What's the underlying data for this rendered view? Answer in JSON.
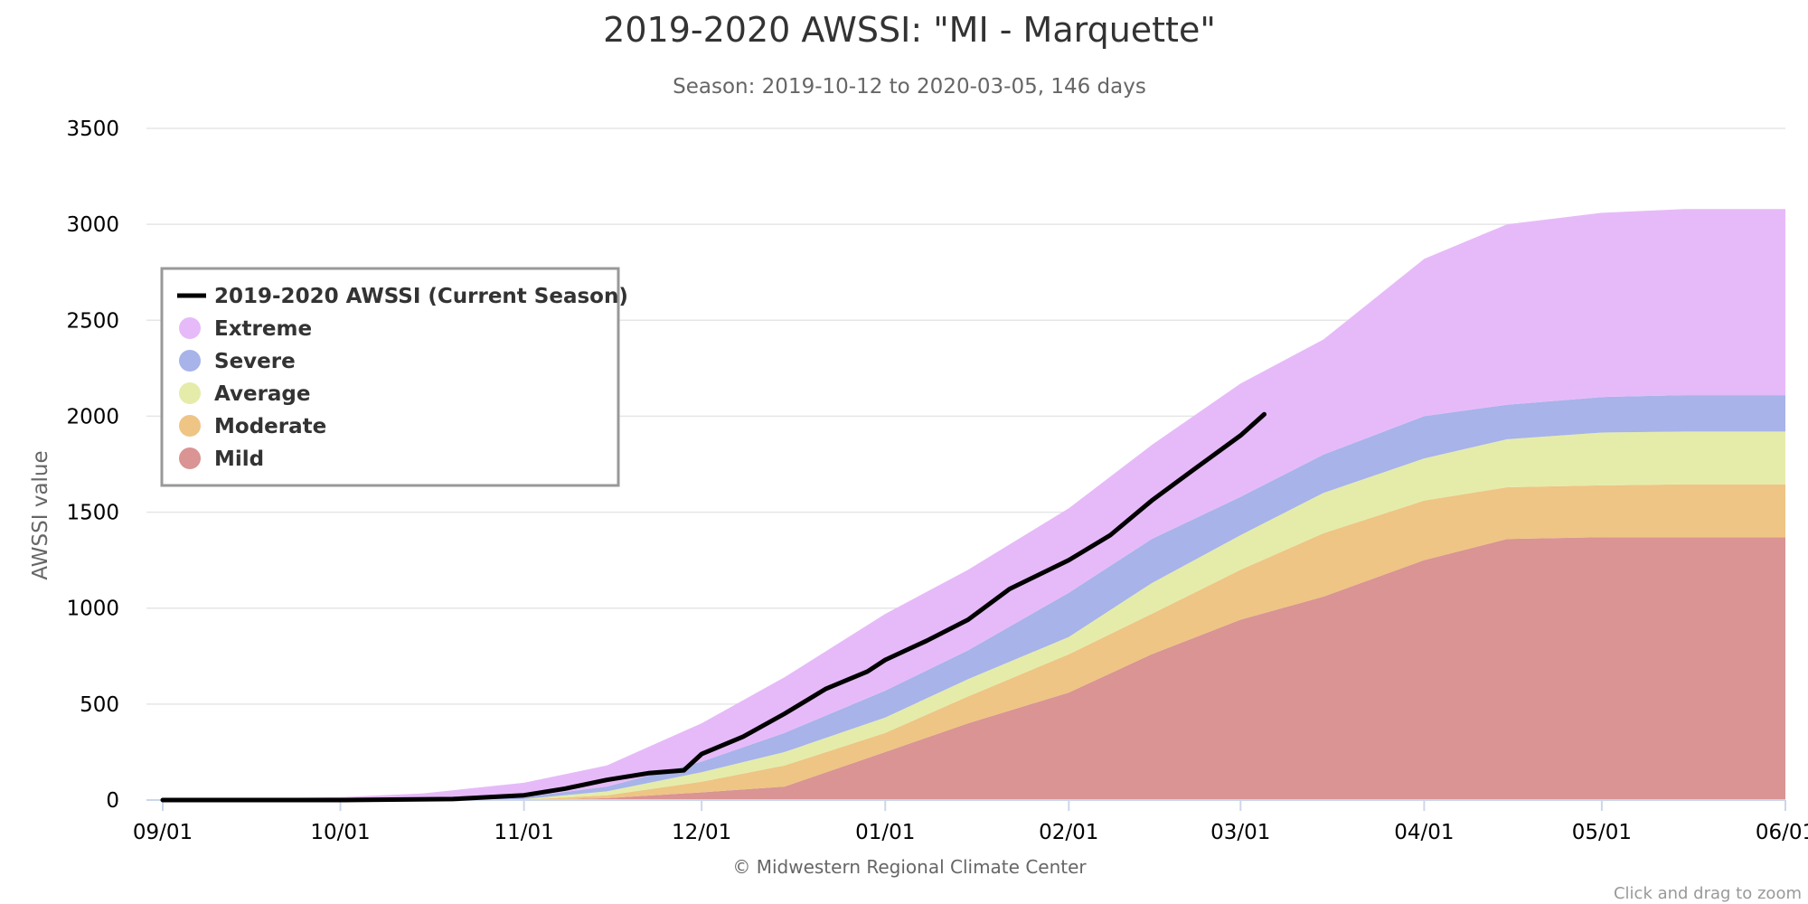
{
  "chart_data": {
    "type": "area",
    "title": "2019-2020 AWSSI: \"MI - Marquette\"",
    "subtitle": "Season: 2019-10-12 to 2020-03-05, 146 days",
    "ylabel": "AWSSI value",
    "xlabel": "",
    "ylim": [
      0,
      3500
    ],
    "y_ticks": [
      0,
      500,
      1000,
      1500,
      2000,
      2500,
      3000,
      3500
    ],
    "x_range": [
      "2019-09-01",
      "2020-06-01"
    ],
    "x_ticks": [
      {
        "date": "2019-09-01",
        "label": "09/01"
      },
      {
        "date": "2019-10-01",
        "label": "10/01"
      },
      {
        "date": "2019-11-01",
        "label": "11/01"
      },
      {
        "date": "2019-12-01",
        "label": "12/01"
      },
      {
        "date": "2020-01-01",
        "label": "01/01"
      },
      {
        "date": "2020-02-01",
        "label": "02/01"
      },
      {
        "date": "2020-03-01",
        "label": "03/01"
      },
      {
        "date": "2020-04-01",
        "label": "04/01"
      },
      {
        "date": "2020-05-01",
        "label": "05/01"
      },
      {
        "date": "2020-06-01",
        "label": "06/01"
      }
    ],
    "grid": true,
    "legend_position": "top-left",
    "credit": "© Midwestern Regional Climate Center",
    "zoom_hint": "Click and drag to zoom",
    "x": [
      "2019-09-01",
      "2019-10-01",
      "2019-10-15",
      "2019-11-01",
      "2019-11-15",
      "2019-12-01",
      "2019-12-15",
      "2020-01-01",
      "2020-01-15",
      "2020-02-01",
      "2020-02-15",
      "2020-03-01",
      "2020-03-15",
      "2020-04-01",
      "2020-04-15",
      "2020-05-01",
      "2020-05-15",
      "2020-06-01"
    ],
    "bands": [
      {
        "name": "Mild",
        "color": "#d99493",
        "lower": [
          0,
          0,
          0,
          0,
          0,
          0,
          0,
          0,
          0,
          0,
          0,
          0,
          0,
          0,
          0,
          0,
          0,
          0
        ],
        "upper": [
          0,
          0,
          0,
          0,
          10,
          40,
          70,
          250,
          400,
          560,
          760,
          940,
          1060,
          1250,
          1360,
          1370,
          1370,
          1370
        ]
      },
      {
        "name": "Moderate",
        "color": "#eec584",
        "lower": [
          0,
          0,
          0,
          0,
          10,
          40,
          70,
          250,
          400,
          560,
          760,
          940,
          1060,
          1250,
          1360,
          1370,
          1370,
          1370
        ],
        "upper": [
          0,
          0,
          0,
          2,
          25,
          95,
          180,
          350,
          540,
          760,
          970,
          1200,
          1390,
          1560,
          1630,
          1640,
          1645,
          1645
        ]
      },
      {
        "name": "Average",
        "color": "#e5ecaa",
        "lower": [
          0,
          0,
          0,
          2,
          25,
          95,
          180,
          350,
          540,
          760,
          970,
          1200,
          1390,
          1560,
          1630,
          1640,
          1645,
          1645
        ],
        "upper": [
          0,
          0,
          0,
          5,
          45,
          145,
          250,
          430,
          630,
          850,
          1130,
          1380,
          1600,
          1780,
          1880,
          1915,
          1920,
          1920
        ]
      },
      {
        "name": "Severe",
        "color": "#a7b3e9",
        "lower": [
          0,
          0,
          0,
          5,
          45,
          145,
          250,
          430,
          630,
          850,
          1130,
          1380,
          1600,
          1780,
          1880,
          1915,
          1920,
          1920
        ],
        "upper": [
          0,
          0,
          5,
          15,
          70,
          200,
          350,
          570,
          780,
          1080,
          1360,
          1580,
          1800,
          2000,
          2060,
          2100,
          2110,
          2110
        ]
      },
      {
        "name": "Extreme",
        "color": "#e6baf8",
        "lower": [
          0,
          0,
          5,
          15,
          70,
          200,
          350,
          570,
          780,
          1080,
          1360,
          1580,
          1800,
          2000,
          2060,
          2100,
          2110,
          2110
        ],
        "upper": [
          0,
          15,
          35,
          90,
          180,
          400,
          640,
          970,
          1200,
          1520,
          1850,
          2170,
          2400,
          2820,
          3000,
          3060,
          3080,
          3080
        ]
      }
    ],
    "band_top": [
      0,
      15,
      35,
      90,
      180,
      400,
      640,
      970,
      1200,
      1520,
      1850,
      2170,
      2400,
      2820,
      3000,
      3060,
      3080,
      3080
    ],
    "series": [
      {
        "name": "2019-2020 AWSSI (Current Season)",
        "color": "#000000",
        "x": [
          "2019-09-01",
          "2019-10-01",
          "2019-10-20",
          "2019-11-01",
          "2019-11-08",
          "2019-11-15",
          "2019-11-22",
          "2019-11-28",
          "2019-12-01",
          "2019-12-08",
          "2019-12-15",
          "2019-12-22",
          "2019-12-29",
          "2020-01-01",
          "2020-01-08",
          "2020-01-15",
          "2020-01-22",
          "2020-02-01",
          "2020-02-08",
          "2020-02-15",
          "2020-02-22",
          "2020-03-01",
          "2020-03-05"
        ],
        "values": [
          0,
          0,
          5,
          25,
          60,
          105,
          140,
          155,
          240,
          330,
          450,
          580,
          670,
          730,
          830,
          940,
          1100,
          1250,
          1380,
          1560,
          1720,
          1900,
          2010
        ]
      }
    ],
    "legend": {
      "items": [
        {
          "label": "2019-2020 AWSSI (Current Season)",
          "color": "#000000",
          "symbol": "line"
        },
        {
          "label": "Extreme",
          "color": "#e6baf8",
          "symbol": "dot"
        },
        {
          "label": "Severe",
          "color": "#a7b3e9",
          "symbol": "dot"
        },
        {
          "label": "Average",
          "color": "#e5ecaa",
          "symbol": "dot"
        },
        {
          "label": "Moderate",
          "color": "#eec584",
          "symbol": "dot"
        },
        {
          "label": "Mild",
          "color": "#d99493",
          "symbol": "dot"
        }
      ]
    }
  }
}
